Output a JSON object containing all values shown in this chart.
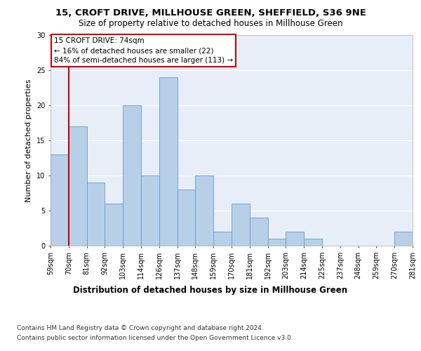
{
  "title1": "15, CROFT DRIVE, MILLHOUSE GREEN, SHEFFIELD, S36 9NE",
  "title2": "Size of property relative to detached houses in Millhouse Green",
  "xlabel": "Distribution of detached houses by size in Millhouse Green",
  "ylabel": "Number of detached properties",
  "footnote1": "Contains HM Land Registry data © Crown copyright and database right 2024.",
  "footnote2": "Contains public sector information licensed under the Open Government Licence v3.0.",
  "annotation_title": "15 CROFT DRIVE: 74sqm",
  "annotation_line1": "← 16% of detached houses are smaller (22)",
  "annotation_line2": "84% of semi-detached houses are larger (113) →",
  "bar_values": [
    13,
    17,
    9,
    6,
    20,
    10,
    24,
    8,
    10,
    2,
    6,
    4,
    1,
    2,
    1,
    0,
    0,
    0,
    0,
    2
  ],
  "categories": [
    "59sqm",
    "70sqm",
    "81sqm",
    "92sqm",
    "103sqm",
    "114sqm",
    "126sqm",
    "137sqm",
    "148sqm",
    "159sqm",
    "170sqm",
    "181sqm",
    "192sqm",
    "203sqm",
    "214sqm",
    "225sqm",
    "237sqm",
    "248sqm",
    "259sqm",
    "270sqm",
    "281sqm"
  ],
  "bar_color": "#b8cfe8",
  "bar_edge_color": "#6699cc",
  "vline_color": "#cc0000",
  "annotation_box_color": "#cc0000",
  "ylim": [
    0,
    30
  ],
  "yticks": [
    0,
    5,
    10,
    15,
    20,
    25,
    30
  ],
  "background_color": "#e8eef8",
  "grid_color": "#ffffff",
  "title1_fontsize": 9.5,
  "title2_fontsize": 8.5,
  "xlabel_fontsize": 8.5,
  "ylabel_fontsize": 8,
  "tick_fontsize": 7,
  "annotation_fontsize": 7.5,
  "footnote_fontsize": 6.5
}
